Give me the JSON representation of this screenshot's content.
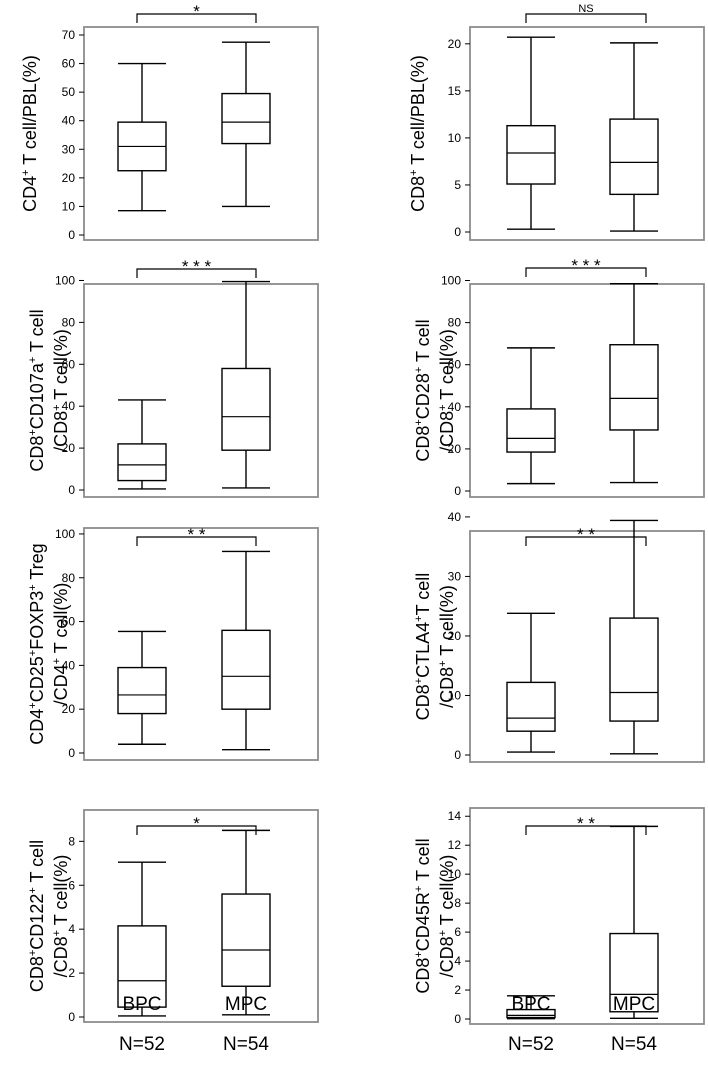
{
  "figure": {
    "group_labels": [
      "BPC",
      "MPC"
    ],
    "group_counts": [
      "N=52",
      "N=54"
    ]
  },
  "chart_data": [
    {
      "type": "box",
      "ylabel_lines": [
        [
          [
            "CD4",
            "b"
          ],
          [
            "+",
            "sup"
          ],
          [
            " T cell/PBL(%)",
            "b"
          ]
        ]
      ],
      "significance": "*",
      "ylim": [
        0,
        70
      ],
      "yticks": [
        0,
        10,
        20,
        30,
        40,
        50,
        60,
        70
      ],
      "categories": [
        "BPC",
        "MPC"
      ],
      "boxes": [
        {
          "min": 8.5,
          "q1": 22.5,
          "median": 31,
          "q3": 39.5,
          "max": 60
        },
        {
          "min": 10,
          "q1": 32,
          "median": 39.5,
          "q3": 49.5,
          "max": 67.5
        }
      ]
    },
    {
      "type": "box",
      "ylabel_lines": [
        [
          [
            "CD8",
            "b"
          ],
          [
            "+",
            "sup"
          ],
          [
            " T cell/PBL(%)",
            "b"
          ]
        ]
      ],
      "significance": "NS",
      "ylim": [
        0,
        22
      ],
      "yticks": [
        0,
        5,
        10,
        15,
        20
      ],
      "categories": [
        "BPC",
        "MPC"
      ],
      "boxes": [
        {
          "min": 0.3,
          "q1": 5.1,
          "median": 8.4,
          "q3": 11.3,
          "max": 20.7
        },
        {
          "min": 0.1,
          "q1": 4,
          "median": 7.4,
          "q3": 12,
          "max": 20.1
        }
      ]
    },
    {
      "type": "box",
      "ylabel_lines": [
        [
          [
            "CD8",
            "b"
          ],
          [
            "+",
            "sup"
          ],
          [
            "CD107a",
            "b"
          ],
          [
            "+",
            "sup"
          ],
          [
            " T cell",
            "b"
          ]
        ],
        [
          [
            "/CD8",
            "b"
          ],
          [
            "+",
            "sup"
          ],
          [
            " T cell(%)",
            "b"
          ]
        ]
      ],
      "significance": "* * *",
      "ylim": [
        0,
        105
      ],
      "yticks": [
        0,
        20,
        40,
        60,
        80,
        100
      ],
      "categories": [
        "BPC",
        "MPC"
      ],
      "boxes": [
        {
          "min": 0.5,
          "q1": 4.5,
          "median": 12,
          "q3": 22,
          "max": 43
        },
        {
          "min": 1,
          "q1": 19,
          "median": 35,
          "q3": 58,
          "max": 99.5
        }
      ]
    },
    {
      "type": "box",
      "ylabel_lines": [
        [
          [
            "CD8",
            "b"
          ],
          [
            "+",
            "sup"
          ],
          [
            "CD28",
            "b"
          ],
          [
            "+",
            "sup"
          ],
          [
            " T cell",
            "b"
          ]
        ],
        [
          [
            "/CD8",
            "b"
          ],
          [
            "+",
            "sup"
          ],
          [
            " T cell(%)",
            "b"
          ]
        ]
      ],
      "significance": "* * *",
      "ylim": [
        0,
        105
      ],
      "yticks": [
        0,
        20,
        40,
        60,
        80,
        100
      ],
      "categories": [
        "BPC",
        "MPC"
      ],
      "boxes": [
        {
          "min": 3.5,
          "q1": 18.5,
          "median": 25,
          "q3": 39,
          "max": 68
        },
        {
          "min": 4,
          "q1": 29,
          "median": 44,
          "q3": 69.5,
          "max": 98.5
        }
      ]
    },
    {
      "type": "box",
      "ylabel_lines": [
        [
          [
            "CD4",
            "b"
          ],
          [
            "+",
            "sup"
          ],
          [
            "CD25",
            "b"
          ],
          [
            "+",
            "sup"
          ],
          [
            "FOXP3",
            "b"
          ],
          [
            "+",
            "sup"
          ],
          [
            " Treg",
            "b"
          ]
        ],
        [
          [
            "/CD4",
            "b"
          ],
          [
            "+",
            "sup"
          ],
          [
            " T cell(%)",
            "b"
          ]
        ]
      ],
      "significance": "* *",
      "ylim": [
        0,
        105
      ],
      "yticks": [
        0,
        20,
        40,
        60,
        80,
        100
      ],
      "categories": [
        "BPC",
        "MPC"
      ],
      "boxes": [
        {
          "min": 4,
          "q1": 18,
          "median": 26.5,
          "q3": 39,
          "max": 55.5
        },
        {
          "min": 1.5,
          "q1": 20,
          "median": 35,
          "q3": 56,
          "max": 92
        }
      ]
    },
    {
      "type": "box",
      "ylabel_lines": [
        [
          [
            "CD8",
            "b"
          ],
          [
            "+",
            "sup"
          ],
          [
            "CTLA4",
            "b"
          ],
          [
            "+",
            "sup"
          ],
          [
            "T cell",
            "b"
          ]
        ],
        [
          [
            "/CD8",
            "b"
          ],
          [
            "+",
            "sup"
          ],
          [
            " T cell(%)",
            "b"
          ]
        ]
      ],
      "significance": "* *",
      "ylim": [
        0,
        42
      ],
      "yticks": [
        0,
        10,
        20,
        30,
        40
      ],
      "categories": [
        "BPC",
        "MPC"
      ],
      "boxes": [
        {
          "min": 0.5,
          "q1": 4,
          "median": 6.2,
          "q3": 12.2,
          "max": 23.8
        },
        {
          "min": 0.2,
          "q1": 5.7,
          "median": 10.5,
          "q3": 23,
          "max": 39.4
        }
      ]
    },
    {
      "type": "box",
      "ylabel_lines": [
        [
          [
            "CD8",
            "b"
          ],
          [
            "+",
            "sup"
          ],
          [
            "CD122",
            "b"
          ],
          [
            "+",
            "sup"
          ],
          [
            " T cell",
            "b"
          ]
        ],
        [
          [
            "/CD8",
            "b"
          ],
          [
            "+",
            "sup"
          ],
          [
            " T cell(%)",
            "b"
          ]
        ]
      ],
      "significance": "*",
      "ylim": [
        0,
        9.2
      ],
      "yticks": [
        0,
        2,
        4,
        6,
        8
      ],
      "categories": [
        "BPC",
        "MPC"
      ],
      "boxes": [
        {
          "min": 0.05,
          "q1": 0.45,
          "median": 1.65,
          "q3": 4.15,
          "max": 7.05
        },
        {
          "min": 0.1,
          "q1": 1.4,
          "median": 3.05,
          "q3": 5.6,
          "max": 8.5
        }
      ]
    },
    {
      "type": "box",
      "ylabel_lines": [
        [
          [
            "CD8",
            "b"
          ],
          [
            "+",
            "sup"
          ],
          [
            "CD45R",
            "b"
          ],
          [
            "+",
            "sup"
          ],
          [
            " T cell",
            "b"
          ]
        ],
        [
          [
            "/CD8",
            "b"
          ],
          [
            "+",
            "sup"
          ],
          [
            " T cell(%)",
            "b"
          ]
        ]
      ],
      "significance": "* *",
      "ylim": [
        0,
        14.5
      ],
      "yticks": [
        0,
        2,
        4,
        6,
        8,
        10,
        12,
        14
      ],
      "categories": [
        "BPC",
        "MPC"
      ],
      "boxes": [
        {
          "min": 0.02,
          "q1": 0.1,
          "median": 0.25,
          "q3": 0.65,
          "max": 1.6
        },
        {
          "min": 0.05,
          "q1": 0.5,
          "median": 1.7,
          "q3": 5.9,
          "max": 13.3
        }
      ]
    }
  ]
}
